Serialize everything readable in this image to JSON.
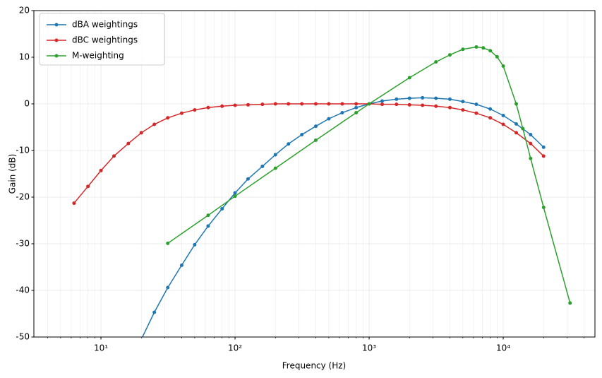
{
  "chart_data": {
    "type": "line",
    "xlabel": "Frequency (Hz)",
    "ylabel": "Gain (dB)",
    "xscale": "log",
    "grid": true,
    "legend": "upper left",
    "xlim": [
      3.16,
      48300
    ],
    "ylim": [
      -50,
      20
    ],
    "xticks": [
      {
        "value": 10,
        "label": "10¹"
      },
      {
        "value": 100,
        "label": "10²"
      },
      {
        "value": 1000,
        "label": "10³"
      },
      {
        "value": 10000,
        "label": "10⁴"
      }
    ],
    "xminorticks": [
      4,
      5,
      6,
      7,
      8,
      9,
      20,
      30,
      40,
      50,
      60,
      70,
      80,
      90,
      200,
      300,
      400,
      500,
      600,
      700,
      800,
      900,
      2000,
      3000,
      4000,
      5000,
      6000,
      7000,
      8000,
      9000,
      20000,
      30000,
      40000
    ],
    "yticks": [
      -50,
      -40,
      -30,
      -20,
      -10,
      0,
      10,
      20
    ],
    "series": [
      {
        "name": "dBA weightings",
        "color": "#1f77b4",
        "x": [
          20,
          25,
          31.5,
          40,
          50,
          63,
          80,
          100,
          125,
          160,
          200,
          250,
          315,
          400,
          500,
          630,
          800,
          1000,
          1250,
          1600,
          2000,
          2500,
          3150,
          4000,
          5000,
          6300,
          8000,
          10000,
          12500,
          16000,
          20000
        ],
        "values": [
          -50.5,
          -44.7,
          -39.4,
          -34.6,
          -30.2,
          -26.2,
          -22.5,
          -19.1,
          -16.1,
          -13.4,
          -10.9,
          -8.6,
          -6.6,
          -4.8,
          -3.2,
          -1.9,
          -0.8,
          0,
          0.6,
          1.0,
          1.2,
          1.3,
          1.2,
          1.0,
          0.5,
          -0.1,
          -1.1,
          -2.5,
          -4.3,
          -6.6,
          -9.3
        ]
      },
      {
        "name": "dBC weightings",
        "color": "#d62728",
        "x": [
          6.3,
          8,
          10,
          12.5,
          16,
          20,
          25,
          31.5,
          40,
          50,
          63,
          80,
          100,
          125,
          160,
          200,
          250,
          315,
          400,
          500,
          630,
          800,
          1000,
          1250,
          1600,
          2000,
          2500,
          3150,
          4000,
          5000,
          6300,
          8000,
          10000,
          12500,
          16000,
          20000
        ],
        "values": [
          -21.3,
          -17.7,
          -14.3,
          -11.2,
          -8.5,
          -6.2,
          -4.4,
          -3.0,
          -2.0,
          -1.3,
          -0.8,
          -0.5,
          -0.3,
          -0.2,
          -0.1,
          0,
          0,
          0,
          0,
          0,
          0,
          0,
          0,
          -0.1,
          -0.1,
          -0.2,
          -0.3,
          -0.5,
          -0.8,
          -1.3,
          -2.0,
          -3.0,
          -4.4,
          -6.2,
          -8.5,
          -11.2
        ]
      },
      {
        "name": "M-weighting",
        "color": "#2ca02c",
        "x": [
          31.5,
          63,
          100,
          200,
          400,
          800,
          1000,
          2000,
          3150,
          4000,
          5000,
          6300,
          7100,
          8000,
          9000,
          10000,
          12500,
          14000,
          16000,
          20000,
          31500
        ],
        "values": [
          -29.9,
          -23.9,
          -19.8,
          -13.8,
          -7.8,
          -1.9,
          0,
          5.6,
          9.0,
          10.5,
          11.7,
          12.2,
          12.0,
          11.4,
          10.1,
          8.1,
          0,
          -5.3,
          -11.7,
          -22.2,
          -42.7
        ]
      }
    ]
  }
}
